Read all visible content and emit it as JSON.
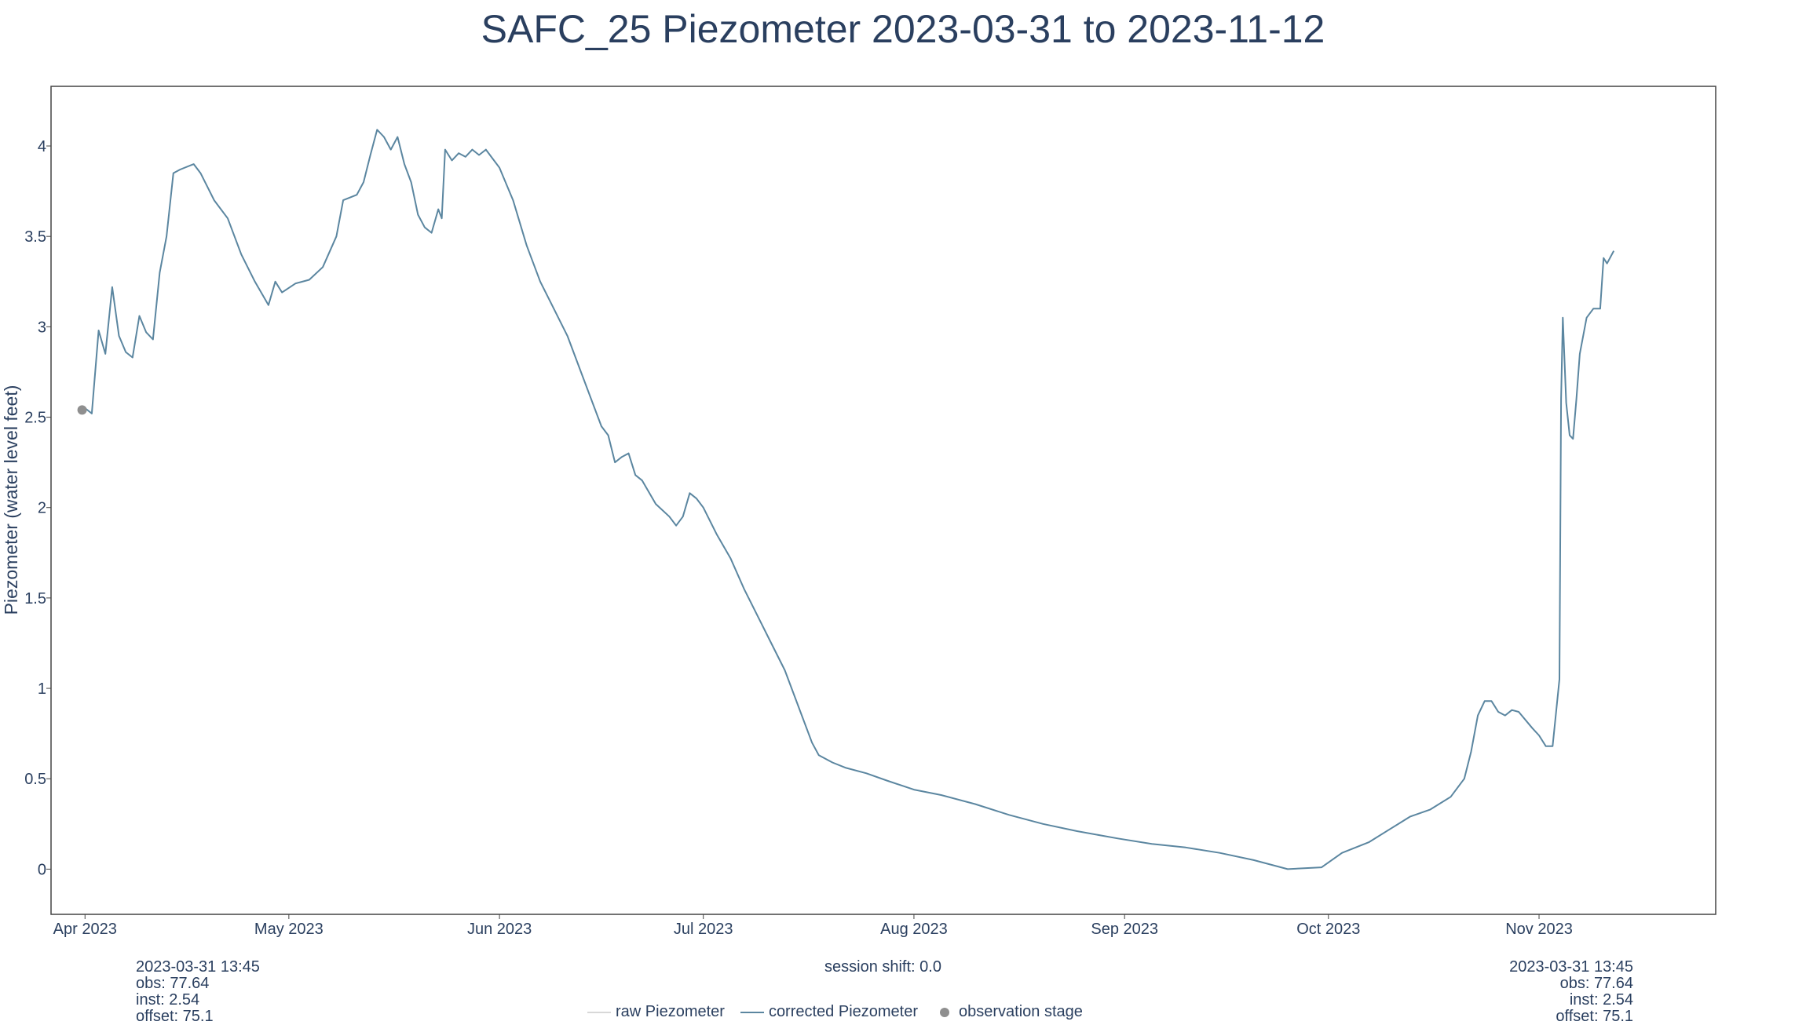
{
  "chart_data": {
    "type": "line",
    "title": "SAFC_25 Piezometer 2023-03-31 to 2023-11-12",
    "ylabel": "Piezometer (water level feet)",
    "xlabel": "",
    "ylim": [
      -0.25,
      4.33
    ],
    "xlim": [
      "2023-03-27",
      "2023-11-27"
    ],
    "x_ticks": [
      {
        "date": "2023-04-01",
        "label": "Apr 2023"
      },
      {
        "date": "2023-05-01",
        "label": "May 2023"
      },
      {
        "date": "2023-06-01",
        "label": "Jun 2023"
      },
      {
        "date": "2023-07-01",
        "label": "Jul 2023"
      },
      {
        "date": "2023-08-01",
        "label": "Aug 2023"
      },
      {
        "date": "2023-09-01",
        "label": "Sep 2023"
      },
      {
        "date": "2023-10-01",
        "label": "Oct 2023"
      },
      {
        "date": "2023-11-01",
        "label": "Nov 2023"
      }
    ],
    "y_ticks": [
      0,
      0.5,
      1,
      1.5,
      2,
      2.5,
      3,
      3.5,
      4
    ],
    "grid": false,
    "legend_position": "bottom-center",
    "series": [
      {
        "name": "raw Piezometer",
        "color": "#d8d8d8",
        "points": []
      },
      {
        "name": "corrected Piezometer",
        "color": "#5b86a0",
        "points": [
          [
            "2023-03-31T13:45",
            2.54
          ],
          [
            "2023-04-01",
            2.55
          ],
          [
            "2023-04-02",
            2.52
          ],
          [
            "2023-04-03",
            2.98
          ],
          [
            "2023-04-04",
            2.85
          ],
          [
            "2023-04-05",
            3.22
          ],
          [
            "2023-04-06",
            2.95
          ],
          [
            "2023-04-07",
            2.86
          ],
          [
            "2023-04-08",
            2.83
          ],
          [
            "2023-04-09",
            3.06
          ],
          [
            "2023-04-10",
            2.97
          ],
          [
            "2023-04-11",
            2.93
          ],
          [
            "2023-04-12",
            3.3
          ],
          [
            "2023-04-13",
            3.5
          ],
          [
            "2023-04-14",
            3.85
          ],
          [
            "2023-04-15",
            3.87
          ],
          [
            "2023-04-17",
            3.9
          ],
          [
            "2023-04-18",
            3.85
          ],
          [
            "2023-04-20",
            3.7
          ],
          [
            "2023-04-22",
            3.6
          ],
          [
            "2023-04-24",
            3.4
          ],
          [
            "2023-04-26",
            3.25
          ],
          [
            "2023-04-28",
            3.12
          ],
          [
            "2023-04-29",
            3.25
          ],
          [
            "2023-04-30",
            3.19
          ],
          [
            "2023-05-02",
            3.24
          ],
          [
            "2023-05-04",
            3.26
          ],
          [
            "2023-05-06",
            3.33
          ],
          [
            "2023-05-08",
            3.5
          ],
          [
            "2023-05-09",
            3.7
          ],
          [
            "2023-05-11",
            3.73
          ],
          [
            "2023-05-12",
            3.8
          ],
          [
            "2023-05-13",
            3.95
          ],
          [
            "2023-05-14",
            4.09
          ],
          [
            "2023-05-15",
            4.05
          ],
          [
            "2023-05-16",
            3.98
          ],
          [
            "2023-05-17",
            4.05
          ],
          [
            "2023-05-18",
            3.9
          ],
          [
            "2023-05-19",
            3.8
          ],
          [
            "2023-05-20",
            3.62
          ],
          [
            "2023-05-21",
            3.55
          ],
          [
            "2023-05-22",
            3.52
          ],
          [
            "2023-05-23",
            3.65
          ],
          [
            "2023-05-23T12:00",
            3.6
          ],
          [
            "2023-05-24",
            3.98
          ],
          [
            "2023-05-25",
            3.92
          ],
          [
            "2023-05-26",
            3.96
          ],
          [
            "2023-05-27",
            3.94
          ],
          [
            "2023-05-28",
            3.98
          ],
          [
            "2023-05-29",
            3.95
          ],
          [
            "2023-05-30",
            3.98
          ],
          [
            "2023-05-31",
            3.93
          ],
          [
            "2023-06-01",
            3.88
          ],
          [
            "2023-06-03",
            3.7
          ],
          [
            "2023-06-05",
            3.45
          ],
          [
            "2023-06-07",
            3.25
          ],
          [
            "2023-06-09",
            3.1
          ],
          [
            "2023-06-11",
            2.95
          ],
          [
            "2023-06-13",
            2.75
          ],
          [
            "2023-06-15",
            2.55
          ],
          [
            "2023-06-16",
            2.45
          ],
          [
            "2023-06-17",
            2.4
          ],
          [
            "2023-06-18",
            2.25
          ],
          [
            "2023-06-19",
            2.28
          ],
          [
            "2023-06-20",
            2.3
          ],
          [
            "2023-06-21",
            2.18
          ],
          [
            "2023-06-22",
            2.15
          ],
          [
            "2023-06-24",
            2.02
          ],
          [
            "2023-06-26",
            1.95
          ],
          [
            "2023-06-27",
            1.9
          ],
          [
            "2023-06-28",
            1.95
          ],
          [
            "2023-06-29",
            2.08
          ],
          [
            "2023-06-30",
            2.05
          ],
          [
            "2023-07-01",
            2.0
          ],
          [
            "2023-07-03",
            1.85
          ],
          [
            "2023-07-05",
            1.72
          ],
          [
            "2023-07-07",
            1.55
          ],
          [
            "2023-07-09",
            1.4
          ],
          [
            "2023-07-11",
            1.25
          ],
          [
            "2023-07-13",
            1.1
          ],
          [
            "2023-07-15",
            0.9
          ],
          [
            "2023-07-17",
            0.7
          ],
          [
            "2023-07-18",
            0.63
          ],
          [
            "2023-07-20",
            0.59
          ],
          [
            "2023-07-22",
            0.56
          ],
          [
            "2023-07-25",
            0.53
          ],
          [
            "2023-07-28",
            0.49
          ],
          [
            "2023-08-01",
            0.44
          ],
          [
            "2023-08-05",
            0.41
          ],
          [
            "2023-08-10",
            0.36
          ],
          [
            "2023-08-15",
            0.3
          ],
          [
            "2023-08-20",
            0.25
          ],
          [
            "2023-08-25",
            0.21
          ],
          [
            "2023-08-31",
            0.17
          ],
          [
            "2023-09-05",
            0.14
          ],
          [
            "2023-09-10",
            0.12
          ],
          [
            "2023-09-15",
            0.09
          ],
          [
            "2023-09-20",
            0.05
          ],
          [
            "2023-09-25",
            0.0
          ],
          [
            "2023-09-30",
            0.01
          ],
          [
            "2023-10-03",
            0.09
          ],
          [
            "2023-10-07",
            0.15
          ],
          [
            "2023-10-10",
            0.22
          ],
          [
            "2023-10-13",
            0.29
          ],
          [
            "2023-10-16",
            0.33
          ],
          [
            "2023-10-19",
            0.4
          ],
          [
            "2023-10-21",
            0.5
          ],
          [
            "2023-10-22",
            0.65
          ],
          [
            "2023-10-23",
            0.85
          ],
          [
            "2023-10-24",
            0.93
          ],
          [
            "2023-10-25",
            0.93
          ],
          [
            "2023-10-26",
            0.87
          ],
          [
            "2023-10-27",
            0.85
          ],
          [
            "2023-10-28",
            0.88
          ],
          [
            "2023-10-29",
            0.87
          ],
          [
            "2023-10-31",
            0.78
          ],
          [
            "2023-11-01",
            0.74
          ],
          [
            "2023-11-02",
            0.68
          ],
          [
            "2023-11-03",
            0.68
          ],
          [
            "2023-11-04",
            1.05
          ],
          [
            "2023-11-04T06:00",
            2.6
          ],
          [
            "2023-11-04T12:00",
            3.05
          ],
          [
            "2023-11-05",
            2.58
          ],
          [
            "2023-11-05T12:00",
            2.4
          ],
          [
            "2023-11-06",
            2.38
          ],
          [
            "2023-11-06T12:00",
            2.6
          ],
          [
            "2023-11-07",
            2.85
          ],
          [
            "2023-11-08",
            3.05
          ],
          [
            "2023-11-09",
            3.1
          ],
          [
            "2023-11-10",
            3.1
          ],
          [
            "2023-11-10T12:00",
            3.38
          ],
          [
            "2023-11-11",
            3.35
          ],
          [
            "2023-11-12",
            3.42
          ]
        ]
      },
      {
        "name": "observation stage",
        "color": "#8f8f8f",
        "points": [
          [
            "2023-03-31T13:45",
            2.54
          ]
        ]
      }
    ],
    "annotations": {
      "left": [
        "2023-03-31 13:45",
        "obs: 77.64",
        "inst: 2.54",
        "offset: 75.1"
      ],
      "center": "session shift: 0.0",
      "right": [
        "2023-03-31 13:45",
        "obs: 77.64",
        "inst: 2.54",
        "offset: 75.1"
      ]
    }
  }
}
